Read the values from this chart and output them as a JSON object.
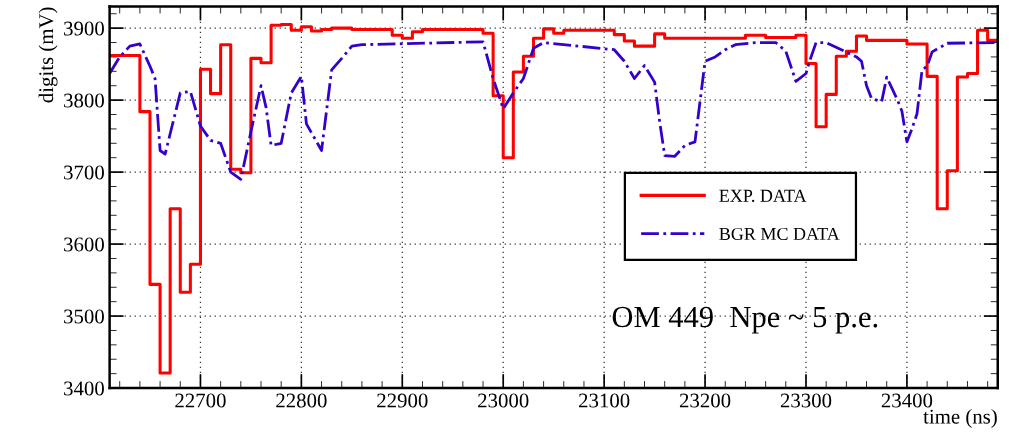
{
  "chart_data": {
    "type": "step",
    "xlabel": "time (ns)",
    "ylabel": "digits (mV)",
    "xlim": [
      22610,
      23490
    ],
    "ylim": [
      3400,
      3930
    ],
    "xticks": [
      22700,
      22800,
      22900,
      23000,
      23100,
      23200,
      23300,
      23400
    ],
    "yticks": [
      3400,
      3500,
      3600,
      3700,
      3800,
      3900
    ],
    "grid": true,
    "legend": "center right",
    "annotations": [
      "OM 449  Npe ~ 5 p.e."
    ],
    "series": [
      {
        "name": "EXP. DATA",
        "color": "#ff0000",
        "line_style": "solid",
        "x": [
          22610,
          22640,
          22650,
          22660,
          22670,
          22680,
          22690,
          22700,
          22710,
          22720,
          22730,
          22740,
          22750,
          22760,
          22770,
          22780,
          22790,
          22800,
          22810,
          22820,
          22830,
          22850,
          22890,
          22900,
          22910,
          22920,
          22980,
          22990,
          23000,
          23010,
          23020,
          23030,
          23040,
          23050,
          23060,
          23110,
          23120,
          23130,
          23150,
          23160,
          23240,
          23260,
          23290,
          23300,
          23310,
          23320,
          23330,
          23340,
          23350,
          23360,
          23400,
          23420,
          23430,
          23440,
          23450,
          23460,
          23470,
          23480,
          23490
        ],
        "values": [
          3862,
          3784,
          3544,
          3421,
          3649,
          3533,
          3572,
          3843,
          3809,
          3877,
          3704,
          3699,
          3858,
          3852,
          3904,
          3905,
          3897,
          3902,
          3896,
          3898,
          3900,
          3898,
          3890,
          3886,
          3895,
          3898,
          3893,
          3806,
          3720,
          3839,
          3861,
          3886,
          3899,
          3893,
          3897,
          3891,
          3882,
          3875,
          3892,
          3886,
          3890,
          3887,
          3890,
          3851,
          3763,
          3808,
          3861,
          3868,
          3889,
          3883,
          3878,
          3833,
          3649,
          3702,
          3832,
          3837,
          3897,
          3883,
          3883
        ]
      },
      {
        "name": "BGR MC DATA",
        "color": "#3300cc",
        "type": "line",
        "line_style": "dashdot",
        "x": [
          22610,
          22620,
          22630,
          22640,
          22650,
          22655,
          22660,
          22665,
          22680,
          22690,
          22700,
          22710,
          22720,
          22730,
          22740,
          22750,
          22760,
          22765,
          22770,
          22780,
          22790,
          22800,
          22805,
          22820,
          22830,
          22840,
          22850,
          22860,
          22980,
          22990,
          23000,
          23010,
          23020,
          23030,
          23040,
          23110,
          23120,
          23130,
          23140,
          23150,
          23155,
          23160,
          23170,
          23180,
          23190,
          23200,
          23210,
          23220,
          23230,
          23250,
          23270,
          23280,
          23290,
          23300,
          23305,
          23310,
          23320,
          23350,
          23355,
          23360,
          23365,
          23375,
          23380,
          23390,
          23395,
          23400,
          23405,
          23410,
          23415,
          23420,
          23425,
          23440,
          23490
        ],
        "values": [
          3837,
          3860,
          3875,
          3878,
          3847,
          3830,
          3730,
          3725,
          3810,
          3812,
          3764,
          3744,
          3740,
          3700,
          3690,
          3756,
          3820,
          3790,
          3737,
          3740,
          3810,
          3833,
          3767,
          3730,
          3842,
          3858,
          3875,
          3877,
          3881,
          3830,
          3788,
          3810,
          3830,
          3872,
          3880,
          3870,
          3854,
          3830,
          3848,
          3825,
          3770,
          3723,
          3722,
          3737,
          3742,
          3854,
          3860,
          3870,
          3877,
          3880,
          3880,
          3868,
          3826,
          3837,
          3860,
          3880,
          3880,
          3860,
          3854,
          3820,
          3802,
          3798,
          3832,
          3802,
          3785,
          3742,
          3760,
          3781,
          3842,
          3847,
          3867,
          3879,
          3880
        ]
      }
    ]
  }
}
